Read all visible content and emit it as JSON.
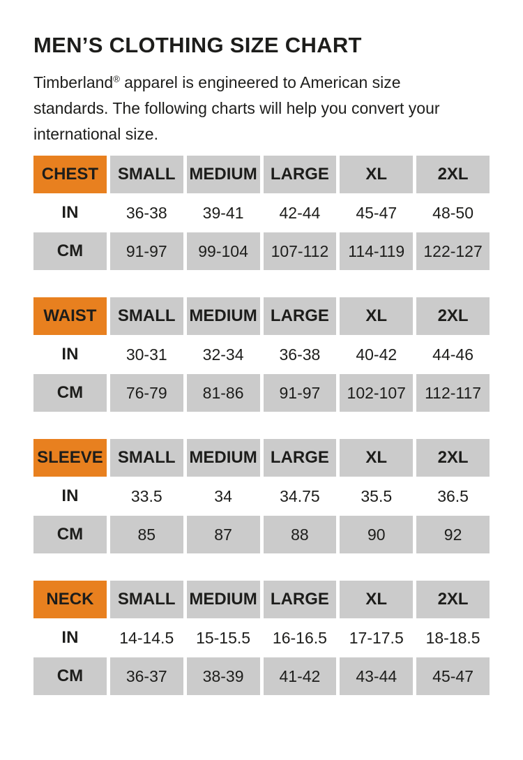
{
  "colors": {
    "accent_orange": "#E8801F",
    "cell_gray": "#CBCBCB",
    "text": "#1D1D1B",
    "background": "#FFFFFF"
  },
  "header": {
    "title": "MEN’S CLOTHING SIZE CHART"
  },
  "intro": {
    "brand": "Timberland",
    "registered_mark": "®",
    "line1_rest": " apparel is engineered to American size",
    "line2": "standards. The following charts will help you convert your",
    "line3": "international size."
  },
  "tables": [
    {
      "label": "CHEST",
      "sizes": [
        "SMALL",
        "MEDIUM",
        "LARGE",
        "XL",
        "2XL"
      ],
      "rows": [
        {
          "unit": "IN",
          "values": [
            "36-38",
            "39-41",
            "42-44",
            "45-47",
            "48-50"
          ]
        },
        {
          "unit": "CM",
          "values": [
            "91-97",
            "99-104",
            "107-112",
            "114-119",
            "122-127"
          ]
        }
      ]
    },
    {
      "label": "WAIST",
      "sizes": [
        "SMALL",
        "MEDIUM",
        "LARGE",
        "XL",
        "2XL"
      ],
      "rows": [
        {
          "unit": "IN",
          "values": [
            "30-31",
            "32-34",
            "36-38",
            "40-42",
            "44-46"
          ]
        },
        {
          "unit": "CM",
          "values": [
            "76-79",
            "81-86",
            "91-97",
            "102-107",
            "112-117"
          ]
        }
      ]
    },
    {
      "label": "SLEEVE",
      "sizes": [
        "SMALL",
        "MEDIUM",
        "LARGE",
        "XL",
        "2XL"
      ],
      "rows": [
        {
          "unit": "IN",
          "values": [
            "33.5",
            "34",
            "34.75",
            "35.5",
            "36.5"
          ]
        },
        {
          "unit": "CM",
          "values": [
            "85",
            "87",
            "88",
            "90",
            "92"
          ]
        }
      ]
    },
    {
      "label": "NECK",
      "sizes": [
        "SMALL",
        "MEDIUM",
        "LARGE",
        "XL",
        "2XL"
      ],
      "rows": [
        {
          "unit": "IN",
          "values": [
            "14-14.5",
            "15-15.5",
            "16-16.5",
            "17-17.5",
            "18-18.5"
          ]
        },
        {
          "unit": "CM",
          "values": [
            "36-37",
            "38-39",
            "41-42",
            "43-44",
            "45-47"
          ]
        }
      ]
    }
  ]
}
